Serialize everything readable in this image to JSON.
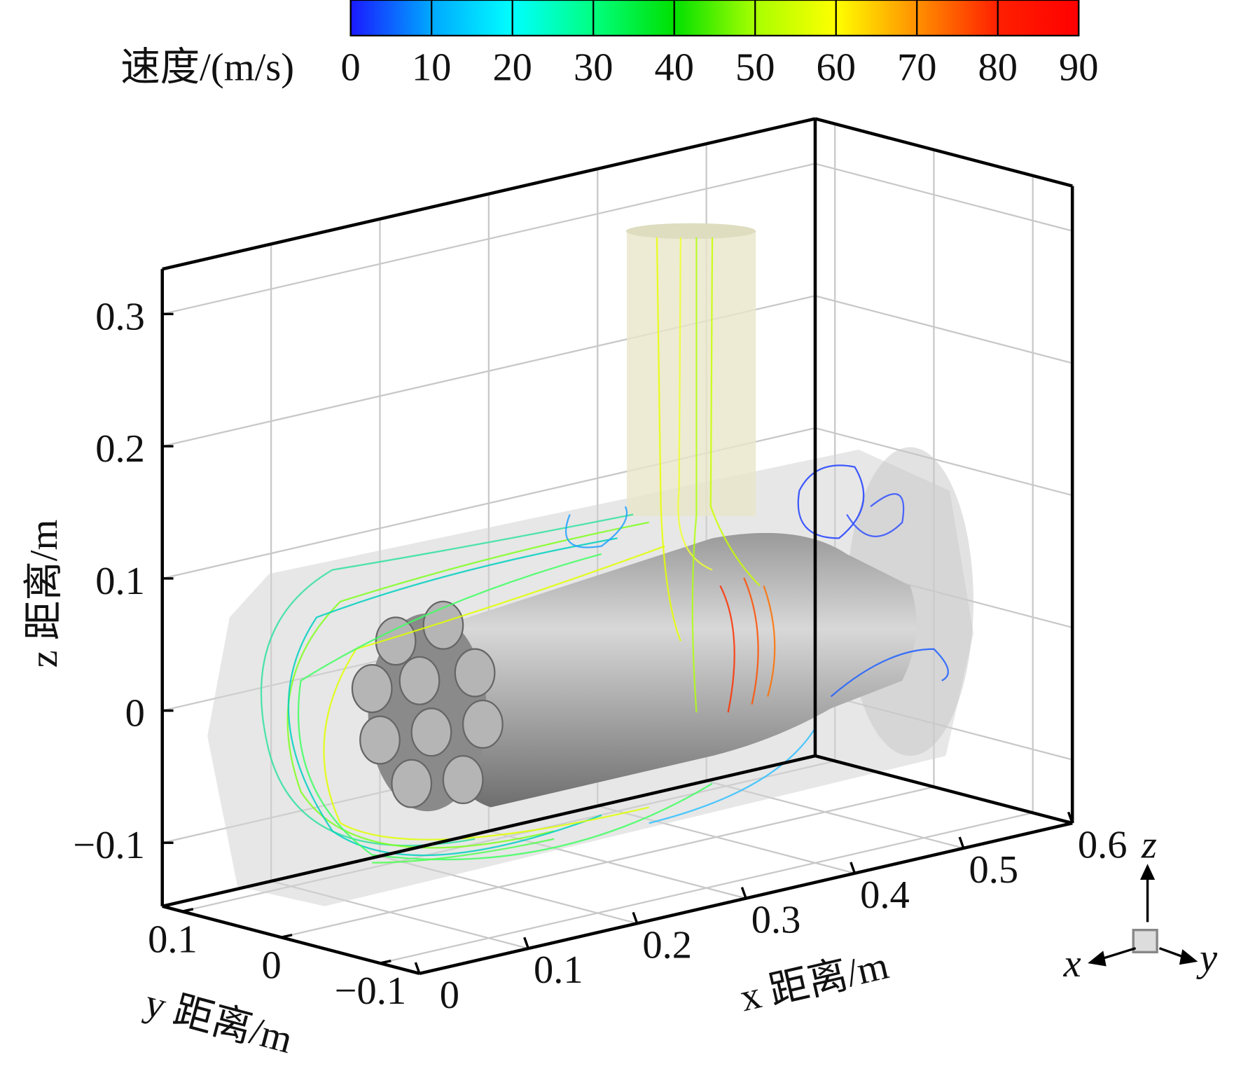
{
  "chart_data": {
    "type": "streamline",
    "colorbar": {
      "label": "速度/(m/s)",
      "lim": [
        0,
        90
      ],
      "ticks": [
        0,
        10,
        20,
        30,
        40,
        50,
        60,
        70,
        80,
        90
      ],
      "colors": [
        "#1a1aff",
        "#00a8ff",
        "#00ffff",
        "#00ff80",
        "#00e000",
        "#a8ff00",
        "#ffff00",
        "#ff9000",
        "#ff2000",
        "#ff0000"
      ]
    },
    "xlabel": "x 距离/m",
    "ylabel": "y 距离/m",
    "zlabel": "z 距离/m",
    "xlim": [
      0,
      0.6
    ],
    "xticks": [
      0,
      0.1,
      0.2,
      0.3,
      0.4,
      0.5,
      0.6
    ],
    "ylim": [
      0.12,
      -0.14
    ],
    "yticks": [
      0.1,
      0,
      {
        "value": -0.1,
        "label": "−0.1"
      }
    ],
    "zlim": [
      -0.148,
      0.334
    ],
    "zticks": [
      {
        "value": -0.1,
        "label": "−0.1"
      },
      0,
      0.1,
      0.2,
      0.3
    ],
    "grid": true,
    "triad": {
      "x": "x",
      "y": "y",
      "z": "z"
    }
  }
}
